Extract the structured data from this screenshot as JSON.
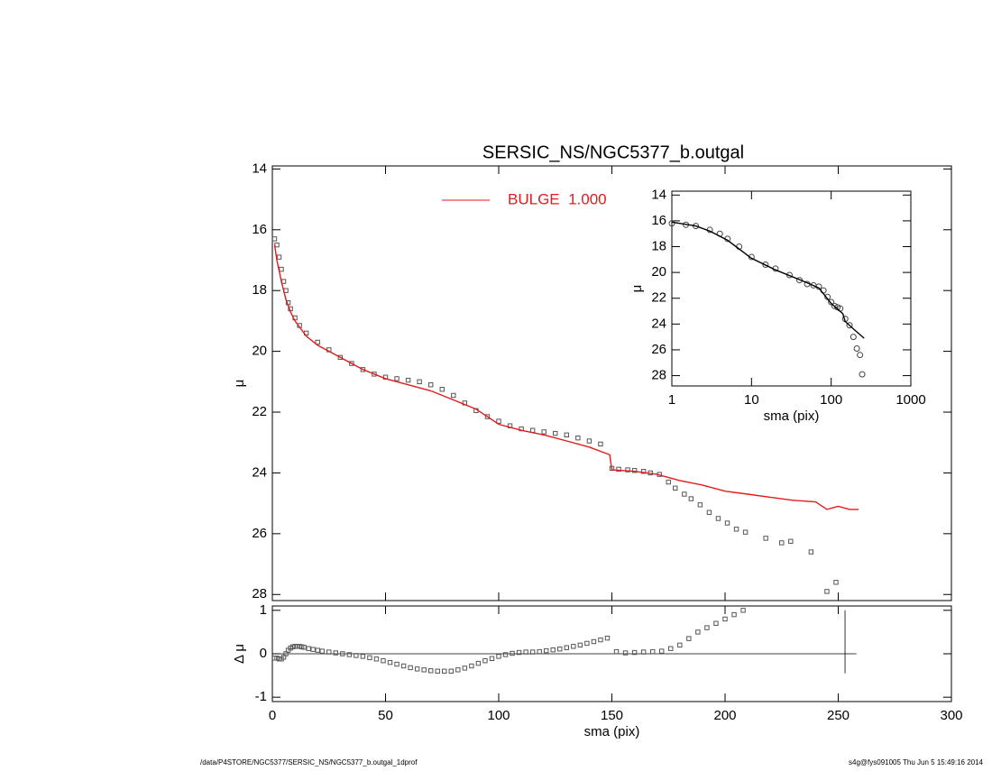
{
  "footer": {
    "left": "/data/P4STORE/NGC5377/SERSIC_NS/NGC5377_b.outgal_1dprof",
    "right": "s4g@fys091005  Thu Jun  5 15:49:16 2014"
  },
  "chart_data": [
    {
      "type": "scatter",
      "title": "SERSIC_NS/NGC5377_b.outgal",
      "ylabel": "μ",
      "xlim": [
        0,
        300
      ],
      "ylim": [
        28.2,
        13.9
      ],
      "xticks": [
        0,
        50,
        100,
        150,
        200,
        250,
        300
      ],
      "yticks": [
        14,
        16,
        18,
        20,
        22,
        24,
        26,
        28
      ],
      "legend": "top-center",
      "series": [
        {
          "marker": "square",
          "color": "#555555",
          "x": [
            1,
            2,
            3,
            4,
            5,
            6,
            7,
            8,
            10,
            12,
            15,
            20,
            25,
            30,
            35,
            40,
            45,
            50,
            55,
            60,
            65,
            70,
            75,
            80,
            85,
            90,
            95,
            100,
            105,
            110,
            115,
            120,
            125,
            130,
            135,
            140,
            145,
            150,
            153,
            157,
            160,
            164,
            167,
            171,
            175,
            178,
            182,
            185,
            189,
            193,
            197,
            201,
            205,
            209,
            218,
            225,
            229,
            238,
            245,
            249
          ],
          "values": [
            16.3,
            16.5,
            16.9,
            17.3,
            17.7,
            18.0,
            18.4,
            18.6,
            18.9,
            19.15,
            19.4,
            19.7,
            19.95,
            20.2,
            20.4,
            20.6,
            20.75,
            20.85,
            20.9,
            20.95,
            21.0,
            21.1,
            21.25,
            21.45,
            21.7,
            21.95,
            22.15,
            22.3,
            22.45,
            22.55,
            22.6,
            22.65,
            22.7,
            22.75,
            22.85,
            22.95,
            23.05,
            23.85,
            23.88,
            23.9,
            23.92,
            23.95,
            24.0,
            24.05,
            24.3,
            24.5,
            24.7,
            24.85,
            25.05,
            25.3,
            25.5,
            25.65,
            25.85,
            25.95,
            26.15,
            26.3,
            26.25,
            26.6,
            27.9,
            27.6
          ]
        },
        {
          "name": "BULGE  1.000",
          "marker": "line",
          "color": "#e41a1c",
          "x": [
            1,
            2,
            4,
            6,
            8,
            10,
            15,
            20,
            30,
            40,
            50,
            60,
            70,
            80,
            90,
            100,
            110,
            120,
            130,
            140,
            149,
            150,
            160,
            170,
            180,
            190,
            200,
            210,
            220,
            230,
            240,
            245,
            250,
            255,
            259
          ],
          "values": [
            16.5,
            17.0,
            17.7,
            18.3,
            18.7,
            19.0,
            19.5,
            19.8,
            20.2,
            20.6,
            20.9,
            21.1,
            21.3,
            21.6,
            21.9,
            22.4,
            22.6,
            22.75,
            22.95,
            23.15,
            23.4,
            23.9,
            23.95,
            24.05,
            24.25,
            24.4,
            24.6,
            24.7,
            24.8,
            24.9,
            24.95,
            25.2,
            25.1,
            25.2,
            25.2
          ]
        }
      ]
    },
    {
      "type": "scatter",
      "ylabel": "Δ μ",
      "xlabel": "sma (pix)",
      "xlim": [
        0,
        300
      ],
      "ylim": [
        -1.1,
        1.1
      ],
      "xticks": [
        0,
        50,
        100,
        150,
        200,
        250,
        300
      ],
      "yticks": [
        -1,
        0,
        1
      ],
      "zero_line": {
        "y": 0,
        "x": [
          0,
          258
        ]
      },
      "vline": {
        "x": 253,
        "y": [
          -0.45,
          1
        ]
      },
      "series": [
        {
          "marker": "square",
          "color": "#555555",
          "x": [
            1,
            2,
            3,
            4,
            5,
            6,
            7,
            8,
            9,
            10,
            11,
            12,
            13,
            14,
            16,
            18,
            20,
            22,
            25,
            28,
            31,
            34,
            37,
            40,
            43,
            46,
            49,
            52,
            55,
            58,
            61,
            64,
            67,
            70,
            73,
            76,
            79,
            82,
            85,
            88,
            91,
            94,
            97,
            100,
            103,
            106,
            109,
            112,
            115,
            118,
            121,
            124,
            127,
            130,
            133,
            136,
            139,
            142,
            145,
            148,
            152,
            156,
            160,
            164,
            168,
            172,
            176,
            180,
            184,
            188,
            192,
            196,
            200,
            204,
            208
          ],
          "values": [
            -0.1,
            -0.1,
            -0.12,
            -0.12,
            -0.08,
            0.0,
            0.08,
            0.13,
            0.16,
            0.17,
            0.17,
            0.17,
            0.16,
            0.15,
            0.12,
            0.1,
            0.08,
            0.06,
            0.04,
            0.02,
            0.0,
            -0.02,
            -0.04,
            -0.06,
            -0.09,
            -0.12,
            -0.16,
            -0.2,
            -0.24,
            -0.28,
            -0.32,
            -0.35,
            -0.37,
            -0.39,
            -0.4,
            -0.4,
            -0.4,
            -0.37,
            -0.33,
            -0.28,
            -0.22,
            -0.16,
            -0.11,
            -0.06,
            -0.02,
            0.01,
            0.03,
            0.04,
            0.04,
            0.05,
            0.07,
            0.09,
            0.11,
            0.14,
            0.17,
            0.2,
            0.24,
            0.28,
            0.32,
            0.36,
            0.05,
            0.02,
            0.03,
            0.04,
            0.05,
            0.06,
            0.12,
            0.2,
            0.35,
            0.5,
            0.6,
            0.7,
            0.8,
            0.9,
            1.0
          ]
        }
      ]
    },
    {
      "type": "scatter",
      "ylabel": "μ",
      "xlabel": "sma (pix)",
      "log_x": true,
      "xlim": [
        1,
        1000
      ],
      "ylim": [
        28.8,
        13.7
      ],
      "xticks": [
        1,
        10,
        100,
        1000
      ],
      "yticks": [
        14,
        16,
        18,
        20,
        22,
        24,
        26,
        28
      ],
      "series": [
        {
          "marker": "circle",
          "color": "#444444",
          "x": [
            1,
            1.5,
            2,
            3,
            4,
            5,
            7,
            10,
            15,
            20,
            30,
            40,
            50,
            60,
            70,
            80,
            90,
            100,
            110,
            120,
            130,
            150,
            170,
            190,
            210,
            230,
            245
          ],
          "values": [
            16.2,
            16.3,
            16.4,
            16.7,
            17.0,
            17.4,
            18.0,
            18.8,
            19.4,
            19.7,
            20.2,
            20.6,
            20.9,
            21.0,
            21.1,
            21.4,
            21.9,
            22.3,
            22.6,
            22.7,
            22.8,
            23.6,
            24.1,
            25.0,
            25.9,
            26.4,
            27.9
          ]
        },
        {
          "marker": "line",
          "color": "#000000",
          "x": [
            1,
            2,
            3,
            5,
            10,
            20,
            50,
            70,
            100,
            140,
            150,
            200,
            260
          ],
          "values": [
            16.1,
            16.4,
            16.8,
            17.5,
            18.9,
            19.8,
            20.8,
            21.2,
            22.4,
            23.2,
            23.8,
            24.5,
            25.1
          ]
        }
      ]
    }
  ]
}
